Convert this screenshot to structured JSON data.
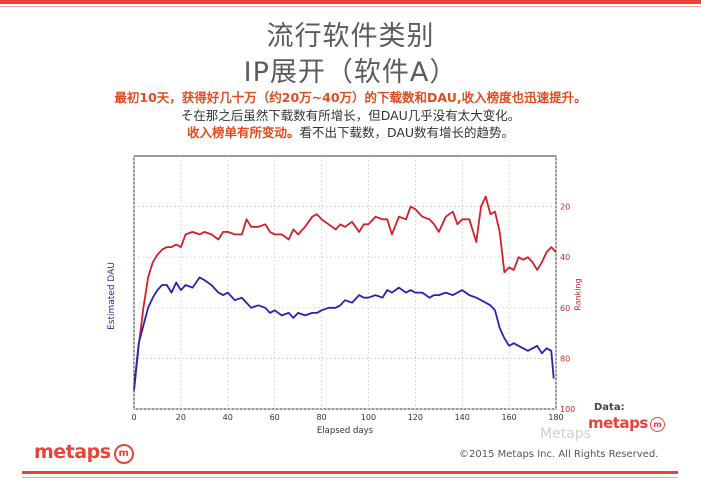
{
  "slide": {
    "title_line1": "流行软件类别",
    "title_line2": "IP展开（软件A）",
    "desc_line1": "最初10天，获得好几十万（约20万~40万）的下载数和DAU,收入榜度也迅速提升。",
    "desc_line2": "そ在那之后虽然下载数有所增长，但DAU几乎没有太大变化。",
    "desc_line3_highlight": "收入榜单有所变动。",
    "desc_line3_rest": "看不出下载数，DAU数有增长的趋势。",
    "source_label": "Data:",
    "source_logo": "metaps",
    "footer_logo": "metaps",
    "logo_mark": "m",
    "copyright": "©2015 Metaps Inc.  All Rights Reserved.",
    "watermark": "Metaps"
  },
  "colors": {
    "brand": "#e8433b",
    "dau_series": "#2a22b5",
    "ranking_series": "#d21f2a",
    "highlight_text": "#e24d1f"
  },
  "chart_data": {
    "type": "line",
    "xlabel": "Elapsed days",
    "ylabel_left": "Estimated DAU",
    "ylabel_right": "Ranking",
    "xlim": [
      0,
      180
    ],
    "x_ticks": [
      0,
      20,
      40,
      60,
      80,
      100,
      120,
      140,
      160,
      180
    ],
    "right_ylim": [
      100,
      0
    ],
    "right_ticks": [
      20,
      40,
      60,
      80,
      100
    ],
    "left_ylim": [
      0,
      100
    ],
    "grid": true,
    "series": [
      {
        "name": "Ranking",
        "axis": "right",
        "x": [
          0,
          2,
          4,
          6,
          8,
          10,
          12,
          14,
          16,
          18,
          20,
          22,
          25,
          28,
          30,
          33,
          36,
          38,
          40,
          43,
          46,
          48,
          50,
          53,
          56,
          58,
          60,
          63,
          66,
          68,
          70,
          73,
          76,
          78,
          80,
          83,
          86,
          88,
          90,
          93,
          96,
          98,
          100,
          103,
          106,
          108,
          110,
          113,
          116,
          118,
          120,
          123,
          126,
          128,
          130,
          133,
          136,
          138,
          140,
          143,
          146,
          148,
          150,
          152,
          154,
          156,
          158,
          160,
          162,
          164,
          166,
          168,
          170,
          172,
          174,
          176,
          178,
          180
        ],
        "values": [
          93,
          75,
          60,
          48,
          42,
          39,
          37,
          36,
          36,
          35,
          36,
          31,
          30,
          31,
          30,
          31,
          33,
          30,
          30,
          31,
          31,
          25,
          28,
          28,
          27,
          30,
          31,
          31,
          33,
          29,
          31,
          28,
          24,
          23,
          25,
          27,
          29,
          27,
          28,
          26,
          30,
          27,
          27,
          24,
          25,
          25,
          31,
          24,
          25,
          20,
          21,
          24,
          25,
          27,
          30,
          24,
          22,
          27,
          25,
          25,
          34,
          20,
          16,
          23,
          22,
          30,
          46,
          44,
          45,
          40,
          41,
          40,
          42,
          45,
          42,
          38,
          36,
          38
        ]
      },
      {
        "name": "Estimated DAU",
        "axis": "left",
        "x": [
          0,
          2,
          4,
          6,
          8,
          10,
          12,
          14,
          16,
          18,
          20,
          22,
          25,
          28,
          30,
          33,
          36,
          38,
          40,
          43,
          46,
          48,
          50,
          53,
          56,
          58,
          60,
          63,
          66,
          68,
          70,
          73,
          76,
          78,
          80,
          83,
          86,
          88,
          90,
          93,
          96,
          98,
          100,
          103,
          106,
          108,
          110,
          113,
          116,
          118,
          120,
          123,
          126,
          128,
          130,
          133,
          136,
          138,
          140,
          143,
          146,
          148,
          150,
          152,
          154,
          156,
          158,
          160,
          162,
          164,
          166,
          168,
          170,
          172,
          174,
          176,
          178,
          179
        ],
        "values": [
          8,
          26,
          33,
          40,
          44,
          47,
          49,
          49,
          46,
          50,
          47,
          49,
          48,
          52,
          51,
          49,
          46,
          45,
          46,
          43,
          44,
          42,
          40,
          41,
          40,
          38,
          39,
          37,
          38,
          36,
          38,
          37,
          38,
          38,
          39,
          40,
          40,
          41,
          43,
          42,
          45,
          44,
          44,
          45,
          44,
          47,
          46,
          48,
          46,
          47,
          46,
          46,
          44,
          45,
          45,
          46,
          45,
          46,
          47,
          45,
          44,
          43,
          42,
          41,
          39,
          32,
          28,
          25,
          26,
          25,
          24,
          23,
          24,
          25,
          22,
          24,
          23,
          12
        ]
      }
    ]
  }
}
